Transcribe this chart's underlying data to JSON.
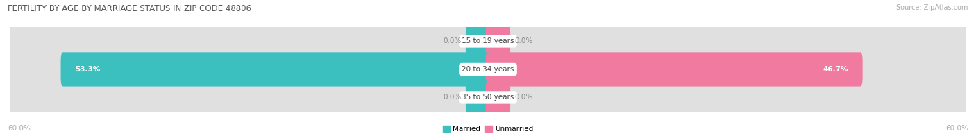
{
  "title": "FERTILITY BY AGE BY MARRIAGE STATUS IN ZIP CODE 48806",
  "source": "Source: ZipAtlas.com",
  "rows": [
    {
      "label": "15 to 19 years",
      "married": 0.0,
      "unmarried": 0.0
    },
    {
      "label": "20 to 34 years",
      "married": 53.3,
      "unmarried": 46.7
    },
    {
      "label": "35 to 50 years",
      "married": 0.0,
      "unmarried": 0.0
    }
  ],
  "max_val": 60.0,
  "married_color": "#3bbfbf",
  "unmarried_color": "#f07aa0",
  "bar_bg_color": "#e0e0e0",
  "row_bg_even": "#efefef",
  "row_bg_odd": "#e4e4e4",
  "title_color": "#555555",
  "value_color_inside": "#ffffff",
  "value_color_outside": "#aaaaaa",
  "source_color": "#aaaaaa",
  "axis_label_color": "#aaaaaa"
}
